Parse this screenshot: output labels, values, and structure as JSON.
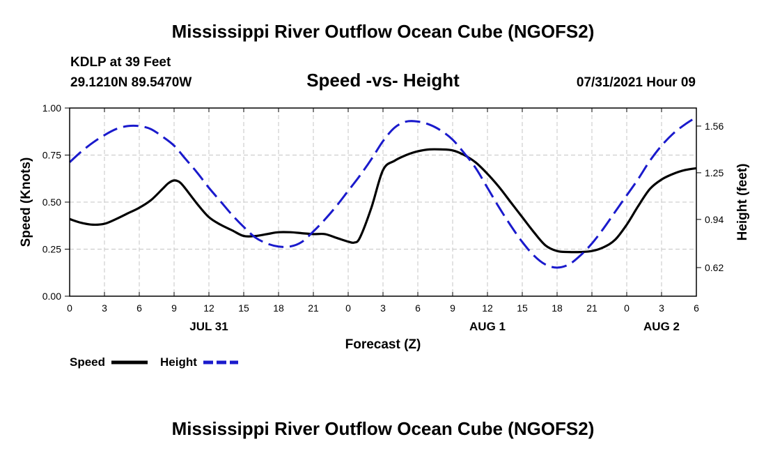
{
  "page": {
    "title_top": "Mississippi River Outflow Ocean Cube (NGOFS2)",
    "title_bottom": "Mississippi River Outflow Ocean Cube (NGOFS2)",
    "station": "KDLP at 39 Feet",
    "coords": "29.1210N  89.5470W",
    "datetime": "07/31/2021 Hour 09"
  },
  "chart_data": {
    "type": "line",
    "title": "Speed -vs- Height",
    "xlabel": "Forecast (Z)",
    "ylabel": "Speed (Knots)",
    "y2label": "Height (feet)",
    "xlim": [
      0,
      54
    ],
    "ylim": [
      0,
      1.0
    ],
    "y2lim": [
      0.43,
      1.68
    ],
    "x_ticks": [
      0,
      3,
      6,
      9,
      12,
      15,
      18,
      21,
      24,
      27,
      30,
      33,
      36,
      39,
      42,
      45,
      48,
      51,
      54
    ],
    "x_tick_labels": [
      "0",
      "3",
      "6",
      "9",
      "12",
      "15",
      "18",
      "21",
      "0",
      "3",
      "6",
      "9",
      "12",
      "15",
      "18",
      "21",
      "0",
      "3",
      "6"
    ],
    "date_labels": [
      {
        "x": 12,
        "label": "JUL 31"
      },
      {
        "x": 36,
        "label": "AUG 1"
      },
      {
        "x": 51,
        "label": "AUG 2"
      }
    ],
    "y_ticks": [
      0.0,
      0.25,
      0.5,
      0.75,
      1.0
    ],
    "y_tick_labels": [
      "0.00",
      "0.25",
      "0.50",
      "0.75",
      "1.00"
    ],
    "y2_ticks": [
      0.62,
      0.94,
      1.25,
      1.56
    ],
    "y2_tick_labels": [
      "0.62",
      "0.94",
      "1.25",
      "1.56"
    ],
    "grid": true,
    "legend": [
      {
        "name": "Speed",
        "color": "#000000",
        "dash": "solid"
      },
      {
        "name": "Height",
        "color": "#1a1acc",
        "dash": "dashed"
      }
    ],
    "series": [
      {
        "name": "Speed",
        "axis": "left",
        "color": "#000000",
        "x": [
          0,
          1,
          2,
          3,
          4,
          5,
          6,
          7,
          8,
          8.5,
          9,
          9.5,
          10,
          11,
          12,
          13,
          14,
          15,
          16,
          17,
          18,
          19,
          20,
          21,
          22,
          23,
          24,
          24.5,
          25,
          26,
          27,
          28,
          29,
          30,
          31,
          32,
          33,
          34,
          35,
          36,
          37,
          38,
          39,
          40,
          41,
          42,
          43,
          44,
          45,
          46,
          47,
          48,
          49,
          50,
          51,
          52,
          53,
          54
        ],
        "values": [
          0.41,
          0.39,
          0.38,
          0.385,
          0.41,
          0.44,
          0.47,
          0.51,
          0.57,
          0.6,
          0.615,
          0.605,
          0.57,
          0.49,
          0.42,
          0.38,
          0.35,
          0.32,
          0.32,
          0.33,
          0.34,
          0.34,
          0.335,
          0.33,
          0.33,
          0.31,
          0.29,
          0.285,
          0.31,
          0.47,
          0.67,
          0.72,
          0.75,
          0.77,
          0.78,
          0.78,
          0.775,
          0.75,
          0.71,
          0.65,
          0.58,
          0.5,
          0.42,
          0.34,
          0.27,
          0.24,
          0.235,
          0.235,
          0.24,
          0.26,
          0.3,
          0.38,
          0.48,
          0.57,
          0.62,
          0.65,
          0.67,
          0.68
        ]
      },
      {
        "name": "Height",
        "axis": "right",
        "color": "#1a1acc",
        "x": [
          0,
          1,
          2,
          3,
          4,
          5,
          6,
          7,
          8,
          9,
          10,
          11,
          12,
          13,
          14,
          15,
          16,
          17,
          18,
          19,
          20,
          21,
          22,
          23,
          24,
          25,
          26,
          27,
          28,
          29,
          30,
          31,
          32,
          33,
          34,
          35,
          36,
          37,
          38,
          39,
          40,
          41,
          42,
          43,
          44,
          45,
          46,
          47,
          48,
          49,
          50,
          51,
          52,
          53,
          54
        ],
        "values": [
          1.32,
          1.39,
          1.45,
          1.5,
          1.54,
          1.56,
          1.56,
          1.54,
          1.49,
          1.43,
          1.34,
          1.25,
          1.15,
          1.06,
          0.97,
          0.89,
          0.82,
          0.78,
          0.76,
          0.76,
          0.79,
          0.86,
          0.94,
          1.03,
          1.13,
          1.23,
          1.34,
          1.46,
          1.55,
          1.59,
          1.59,
          1.57,
          1.53,
          1.47,
          1.38,
          1.28,
          1.15,
          1.02,
          0.9,
          0.79,
          0.7,
          0.64,
          0.62,
          0.64,
          0.7,
          0.78,
          0.88,
          0.99,
          1.1,
          1.21,
          1.33,
          1.43,
          1.51,
          1.57,
          1.62
        ]
      }
    ]
  }
}
